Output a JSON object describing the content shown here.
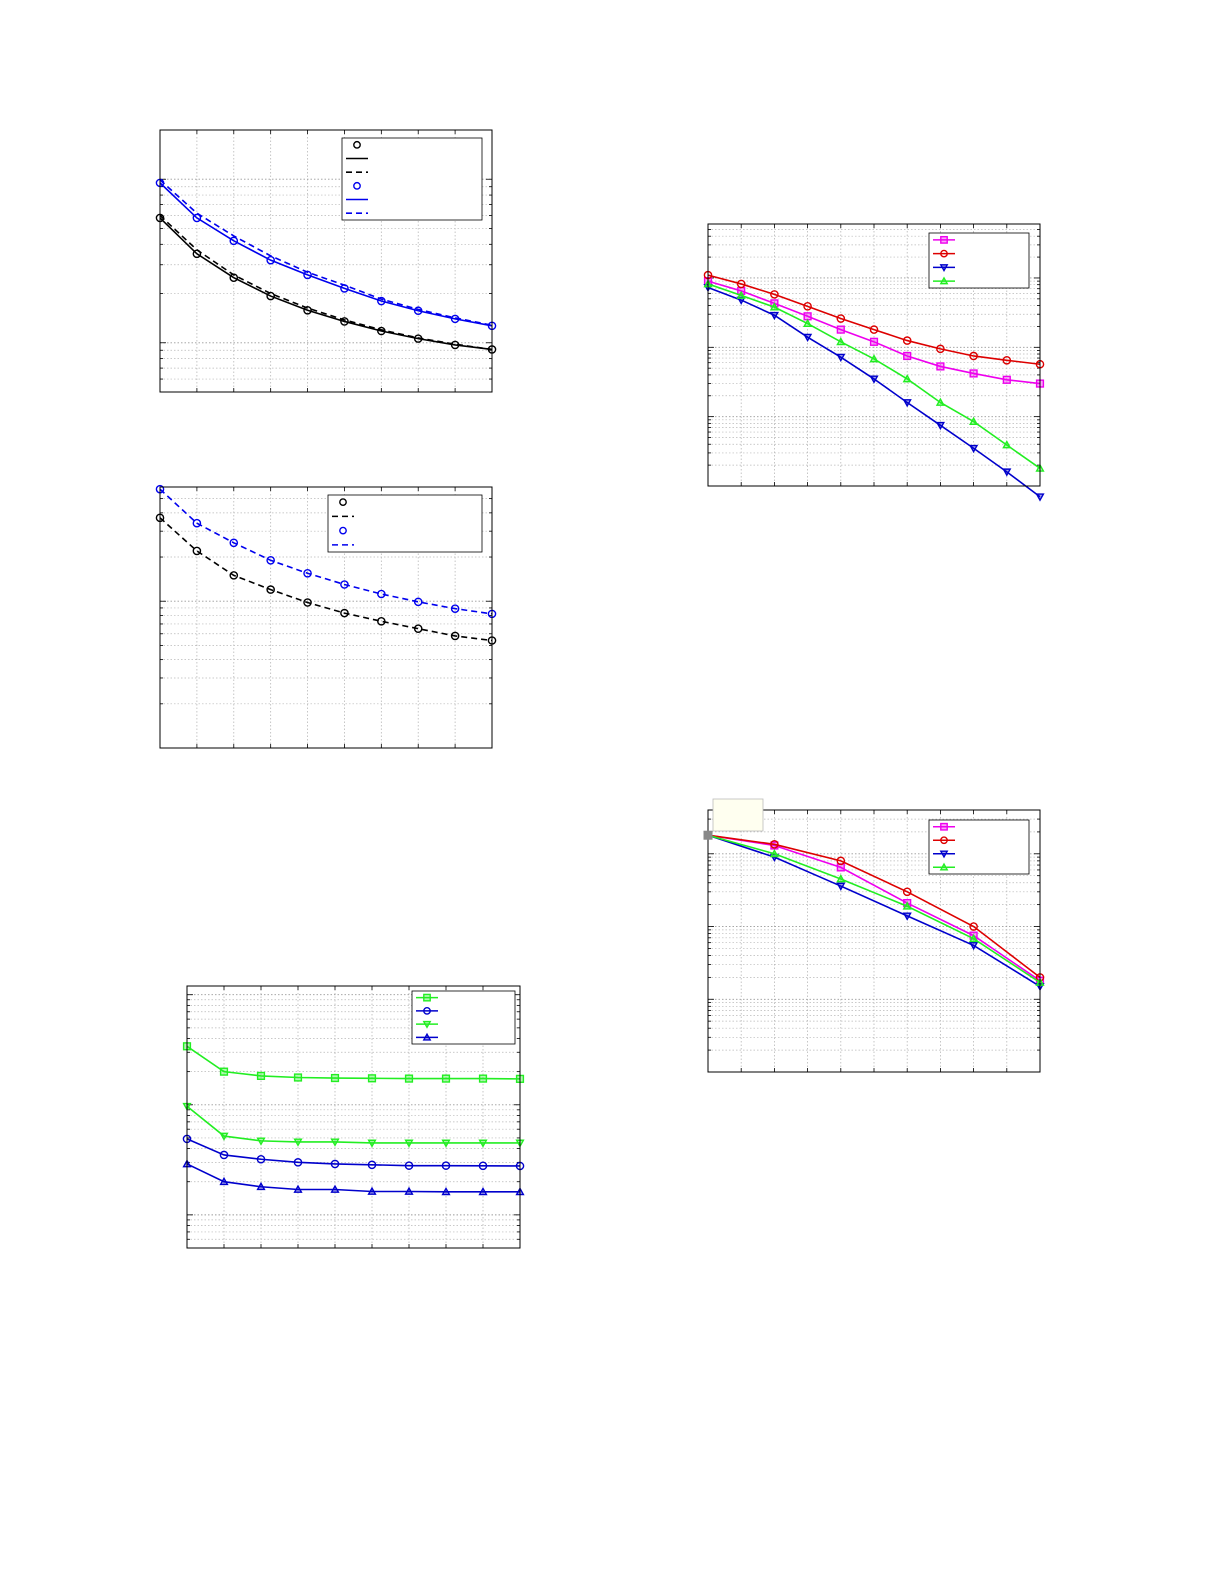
{
  "colors": {
    "black": "#000000",
    "blue": "#0000ee",
    "red": "#dd0000",
    "magenta": "#ee00ee",
    "green": "#22ee22",
    "darkblue": "#0000cc",
    "grid": "#b8b8b8",
    "annotation_fill": "#fffff0",
    "marker_gray": "#888888"
  },
  "chart_data": [
    {
      "type": "line",
      "grid": true,
      "yscale": "log",
      "legend": "top-right",
      "xlim": [
        1,
        10
      ],
      "ylim": [
        0.0005,
        0.02
      ],
      "x": [
        1,
        2,
        3,
        4,
        5,
        6,
        7,
        8,
        9,
        10
      ],
      "series": [
        {
          "color": "black",
          "marker": "circle",
          "line": "none",
          "values": [
            0.0058,
            0.0035,
            0.0025,
            0.00193,
            0.00158,
            0.00135,
            0.00118,
            0.00106,
            0.00097,
            0.00091
          ]
        },
        {
          "color": "black",
          "marker": "none",
          "line": "solid",
          "values": [
            0.0058,
            0.0035,
            0.0025,
            0.00193,
            0.00158,
            0.00135,
            0.00118,
            0.00106,
            0.00097,
            0.00091
          ]
        },
        {
          "color": "black",
          "marker": "none",
          "line": "dashed",
          "values": [
            0.006,
            0.0037,
            0.0026,
            0.002,
            0.00163,
            0.00138,
            0.0012,
            0.00107,
            0.00098,
            0.00091
          ]
        },
        {
          "color": "blue",
          "marker": "circle",
          "line": "none",
          "values": [
            0.0095,
            0.0058,
            0.0042,
            0.0032,
            0.0026,
            0.00215,
            0.0018,
            0.00157,
            0.0014,
            0.00127
          ]
        },
        {
          "color": "blue",
          "marker": "none",
          "line": "solid",
          "values": [
            0.0095,
            0.0058,
            0.0042,
            0.0032,
            0.0026,
            0.00215,
            0.0018,
            0.00157,
            0.0014,
            0.00127
          ]
        },
        {
          "color": "blue",
          "marker": "none",
          "line": "dashed",
          "values": [
            0.0099,
            0.0062,
            0.0045,
            0.0034,
            0.0027,
            0.00225,
            0.00185,
            0.0016,
            0.00142,
            0.00128
          ]
        }
      ]
    },
    {
      "type": "line",
      "grid": true,
      "yscale": "log",
      "legend": "top-right",
      "xlim": [
        1,
        10
      ],
      "ylim": [
        0.0001,
        0.006
      ],
      "x": [
        1,
        2,
        3,
        4,
        5,
        6,
        7,
        8,
        9,
        10
      ],
      "series": [
        {
          "color": "black",
          "marker": "circle",
          "line": "none",
          "values": [
            0.0037,
            0.0022,
            0.0015,
            0.0012,
            0.00098,
            0.00083,
            0.00073,
            0.00065,
            0.00058,
            0.00054
          ]
        },
        {
          "color": "black",
          "marker": "none",
          "line": "dashed",
          "values": [
            0.0037,
            0.0022,
            0.0015,
            0.0012,
            0.00098,
            0.00083,
            0.00073,
            0.00065,
            0.00058,
            0.00054
          ]
        },
        {
          "color": "blue",
          "marker": "circle",
          "line": "none",
          "values": [
            0.0058,
            0.0034,
            0.0025,
            0.0019,
            0.00155,
            0.0013,
            0.00112,
            0.00099,
            0.00089,
            0.00082
          ]
        },
        {
          "color": "blue",
          "marker": "none",
          "line": "dashed",
          "values": [
            0.0058,
            0.0034,
            0.0025,
            0.0019,
            0.00155,
            0.0013,
            0.00112,
            0.00099,
            0.00089,
            0.00082
          ]
        }
      ]
    },
    {
      "type": "line",
      "grid": true,
      "yscale": "log",
      "legend": "top-right",
      "xlim": [
        1,
        10
      ],
      "ylim": [
        0.0005,
        0.12
      ],
      "x": [
        1,
        2,
        3,
        4,
        5,
        6,
        7,
        8,
        9,
        10
      ],
      "series": [
        {
          "color": "green",
          "marker": "square",
          "values": [
            0.034,
            0.02,
            0.0183,
            0.0177,
            0.0175,
            0.0174,
            0.0173,
            0.0173,
            0.0173,
            0.0172
          ]
        },
        {
          "color": "darkblue",
          "marker": "circle",
          "values": [
            0.0049,
            0.0035,
            0.0032,
            0.003,
            0.0029,
            0.00285,
            0.0028,
            0.0028,
            0.00279,
            0.00278
          ]
        },
        {
          "color": "green",
          "marker": "triangle-down",
          "values": [
            0.0097,
            0.0052,
            0.0047,
            0.0046,
            0.0046,
            0.0045,
            0.0045,
            0.0045,
            0.0045,
            0.0045
          ]
        },
        {
          "color": "darkblue",
          "marker": "triangle-up",
          "values": [
            0.0029,
            0.002,
            0.0018,
            0.0017,
            0.0017,
            0.00163,
            0.00163,
            0.00162,
            0.00162,
            0.00162
          ]
        }
      ]
    },
    {
      "type": "line",
      "grid": true,
      "yscale": "log",
      "legend": "top-right",
      "xlim": [
        1,
        11
      ],
      "ylim": [
        1e-05,
        0.06
      ],
      "x": [
        1,
        2,
        3,
        4,
        5,
        6,
        7,
        8,
        9,
        10,
        11
      ],
      "series": [
        {
          "color": "magenta",
          "marker": "square",
          "values": [
            0.009,
            0.0065,
            0.0043,
            0.0028,
            0.0018,
            0.0012,
            0.00075,
            0.00053,
            0.00042,
            0.00034,
            0.0003
          ]
        },
        {
          "color": "red",
          "marker": "circle",
          "values": [
            0.011,
            0.0082,
            0.0058,
            0.0039,
            0.0026,
            0.0018,
            0.00125,
            0.00095,
            0.00075,
            0.00065,
            0.00057
          ]
        },
        {
          "color": "darkblue",
          "marker": "triangle-down",
          "values": [
            0.0073,
            0.0048,
            0.0029,
            0.0014,
            0.00072,
            0.00035,
            0.00016,
            7.5e-05,
            3.5e-05,
            1.6e-05,
            7e-06
          ]
        },
        {
          "color": "green",
          "marker": "triangle-up",
          "values": [
            0.0082,
            0.0056,
            0.0038,
            0.0022,
            0.0012,
            0.00068,
            0.00035,
            0.00016,
            8.5e-05,
            3.9e-05,
            1.8e-05
          ]
        }
      ]
    },
    {
      "type": "line",
      "grid": true,
      "yscale": "log",
      "legend": "top-right",
      "xlim": [
        1,
        11
      ],
      "ylim": [
        0.0001,
        0.4
      ],
      "x": [
        1,
        3,
        5,
        7,
        9,
        11
      ],
      "series": [
        {
          "color": "magenta",
          "marker": "square",
          "values": [
            0.18,
            0.13,
            0.065,
            0.021,
            0.0075,
            0.0018
          ]
        },
        {
          "color": "red",
          "marker": "circle",
          "values": [
            0.18,
            0.135,
            0.08,
            0.03,
            0.01,
            0.002
          ]
        },
        {
          "color": "darkblue",
          "marker": "triangle-down",
          "values": [
            0.18,
            0.09,
            0.036,
            0.014,
            0.0055,
            0.0015
          ]
        },
        {
          "color": "green",
          "marker": "triangle-up",
          "values": [
            0.18,
            0.1,
            0.045,
            0.019,
            0.0068,
            0.0017
          ]
        }
      ]
    }
  ]
}
